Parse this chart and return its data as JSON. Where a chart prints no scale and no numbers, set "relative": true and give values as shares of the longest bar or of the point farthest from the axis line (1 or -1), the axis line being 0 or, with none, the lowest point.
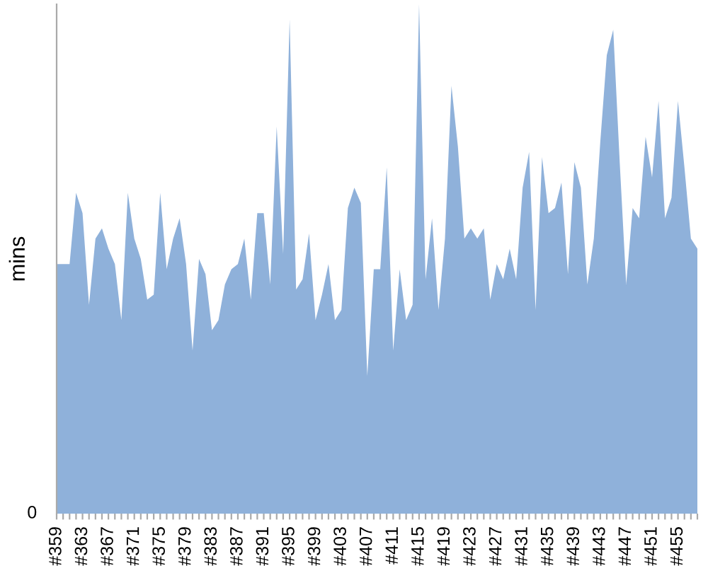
{
  "chart_data": {
    "type": "area",
    "relative": true,
    "ylabel": "mins",
    "color": "#8fb1da",
    "categories": [
      "#359",
      null,
      null,
      null,
      "#363",
      null,
      null,
      null,
      "#367",
      null,
      null,
      null,
      "#371",
      null,
      null,
      null,
      "#375",
      null,
      null,
      null,
      "#379",
      null,
      null,
      null,
      "#383",
      null,
      null,
      null,
      "#387",
      null,
      null,
      null,
      "#391",
      null,
      null,
      null,
      "#395",
      null,
      null,
      null,
      "#399",
      null,
      null,
      null,
      "#403",
      null,
      null,
      null,
      "#407",
      null,
      null,
      null,
      "#411",
      null,
      null,
      null,
      "#415",
      null,
      null,
      null,
      "#419",
      null,
      null,
      null,
      "#423",
      null,
      null,
      null,
      "#427",
      null,
      null,
      null,
      "#431",
      null,
      null,
      null,
      "#435",
      null,
      null,
      null,
      "#439",
      null,
      null,
      null,
      "#443",
      null,
      null,
      null,
      "#447",
      null,
      null,
      null,
      "#451",
      null,
      null,
      null,
      "#455",
      null,
      null,
      null
    ],
    "values": [
      0.49,
      0.49,
      0.49,
      0.63,
      0.59,
      0.41,
      0.54,
      0.56,
      0.52,
      0.49,
      0.38,
      0.63,
      0.54,
      0.5,
      0.42,
      0.43,
      0.63,
      0.48,
      0.54,
      0.58,
      0.49,
      0.32,
      0.5,
      0.47,
      0.36,
      0.38,
      0.45,
      0.48,
      0.49,
      0.54,
      0.42,
      0.59,
      0.59,
      0.45,
      0.76,
      0.51,
      0.97,
      0.44,
      0.46,
      0.55,
      0.38,
      0.43,
      0.49,
      0.38,
      0.4,
      0.6,
      0.64,
      0.61,
      0.27,
      0.48,
      0.48,
      0.68,
      0.32,
      0.48,
      0.38,
      0.41,
      1,
      0.46,
      0.58,
      0.4,
      0.54,
      0.84,
      0.72,
      0.54,
      0.56,
      0.54,
      0.56,
      0.42,
      0.49,
      0.46,
      0.52,
      0.46,
      0.64,
      0.71,
      0.4,
      0.7,
      0.59,
      0.6,
      0.65,
      0.47,
      0.69,
      0.64,
      0.45,
      0.54,
      0.73,
      0.9,
      0.95,
      0.69,
      0.45,
      0.6,
      0.58,
      0.74,
      0.66,
      0.81,
      0.58,
      0.62,
      0.81,
      0.68,
      0.54,
      0.52
    ],
    "annotations": [
      "0"
    ]
  }
}
